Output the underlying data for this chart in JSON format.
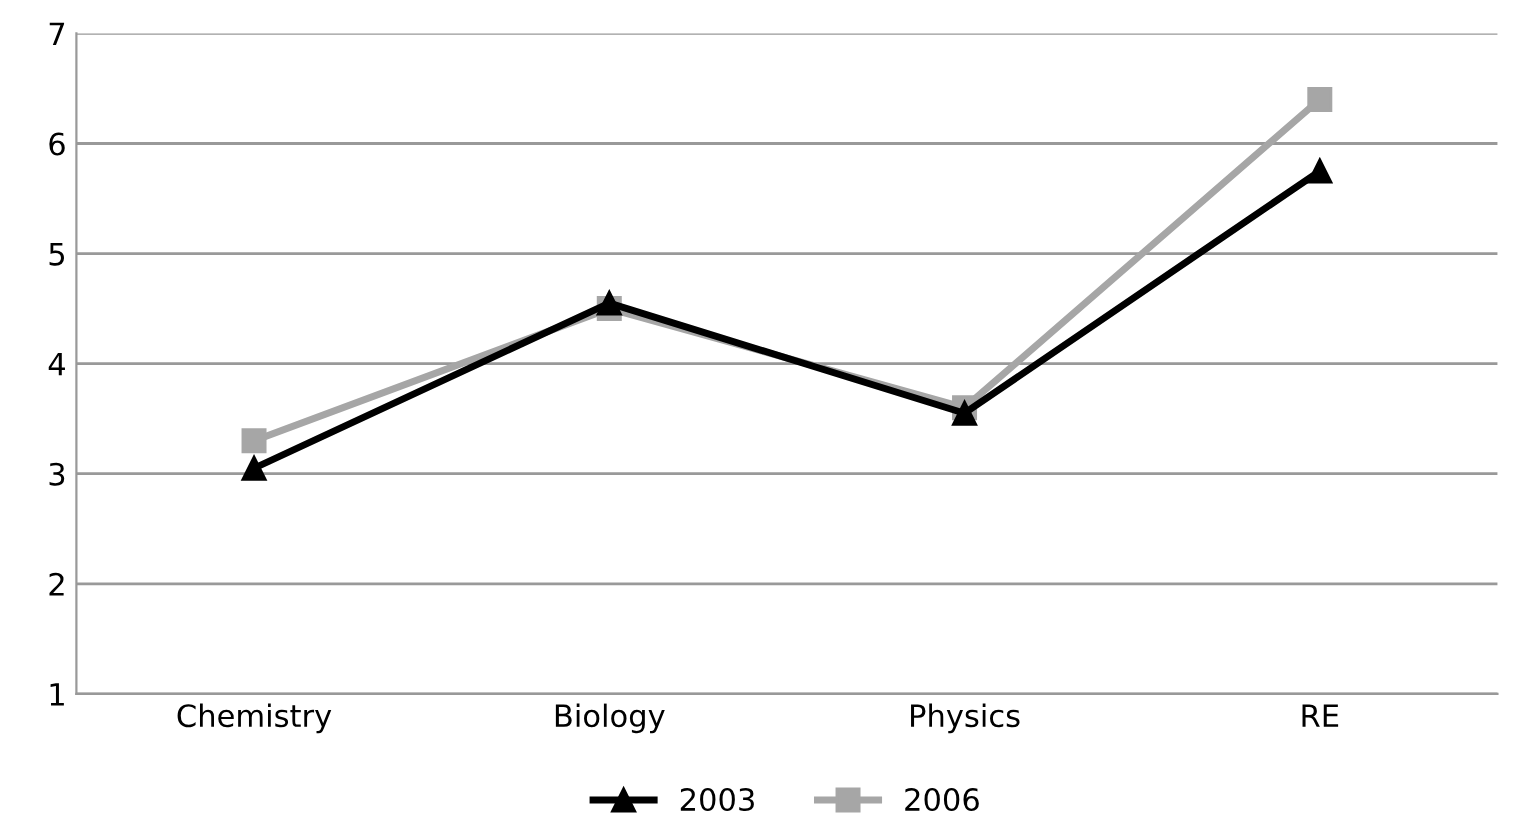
{
  "chart_data": {
    "type": "line",
    "categories": [
      "Chemistry",
      "Biology",
      "Physics",
      "RE"
    ],
    "series": [
      {
        "name": "2003",
        "color": "#000000",
        "marker": "triangle",
        "values": [
          3.05,
          4.55,
          3.55,
          5.75
        ]
      },
      {
        "name": "2006",
        "color": "#a6a6a6",
        "marker": "square",
        "values": [
          3.3,
          4.5,
          3.6,
          6.4
        ]
      }
    ],
    "ylim": [
      1,
      7
    ],
    "yticks": [
      1,
      2,
      3,
      4,
      5,
      6,
      7
    ],
    "grid": "y",
    "legend": "bottom",
    "line_style": "solid"
  }
}
